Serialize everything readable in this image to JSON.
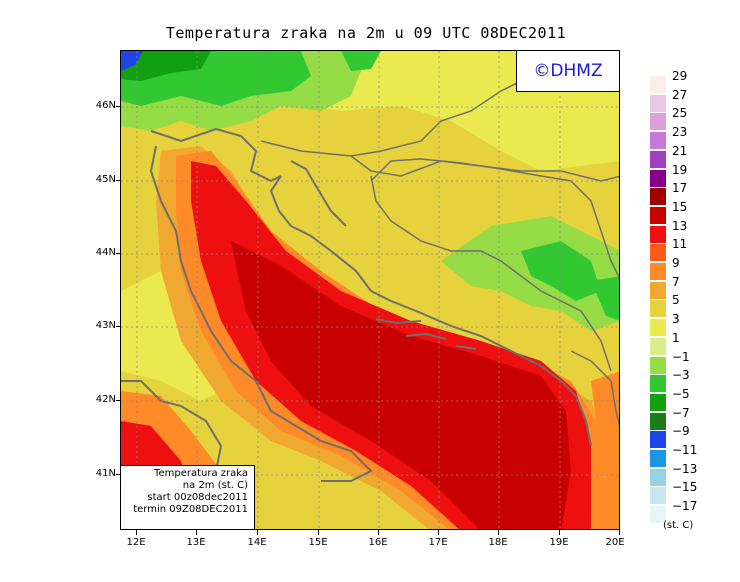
{
  "title": "Temperatura zraka na 2m u 09 UTC 08DEC2011",
  "copyright": "©DHMZ",
  "info_box": {
    "line1": "Temperatura zraka",
    "line2": "na 2m (st. C)",
    "line3": "start 00z08dec2011",
    "line4": "termin 09Z08DEC2011"
  },
  "lat_labels": [
    "46N",
    "45N",
    "44N",
    "43N",
    "42N",
    "41N"
  ],
  "lon_labels": [
    "12E",
    "13E",
    "14E",
    "15E",
    "16E",
    "17E",
    "18E",
    "19E",
    "20E"
  ],
  "legend": {
    "levels": [
      "29",
      "27",
      "25",
      "23",
      "21",
      "19",
      "17",
      "15",
      "13",
      "11",
      "9",
      "7",
      "5",
      "3",
      "1",
      "−1",
      "−3",
      "−5",
      "−7",
      "−9",
      "−11",
      "−13",
      "−15",
      "−17"
    ],
    "colors": [
      "#fbeee6",
      "#e8c8e6",
      "#dca0dc",
      "#c878d8",
      "#a040c0",
      "#880088",
      "#a00000",
      "#c80000",
      "#ee1010",
      "#ff5a18",
      "#ff8a28",
      "#f0a830",
      "#e6d23c",
      "#eaea50",
      "#d8ee88",
      "#96dc46",
      "#32c832",
      "#10a010",
      "#1c7c1c",
      "#1e46e6",
      "#1e96e6",
      "#96d2e6",
      "#c8e6f0",
      "#e6f6f6"
    ],
    "units": "(st. C)"
  }
}
